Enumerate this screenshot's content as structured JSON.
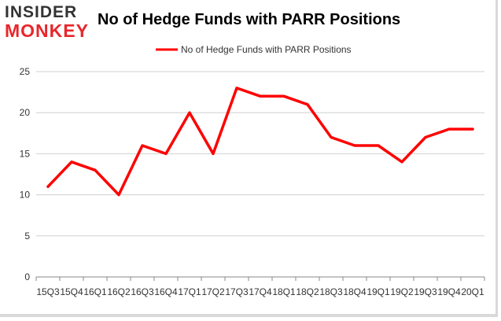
{
  "header": {
    "logo_top": "INSIDER",
    "logo_bottom": "MONKEY",
    "title": "No of Hedge Funds with PARR Positions"
  },
  "colors": {
    "series": "#ff0000",
    "grid": "#d0d0d0",
    "axis": "#888888",
    "logo_red": "#e8262b"
  },
  "chart_data": {
    "type": "line",
    "title": "No of Hedge Funds with PARR Positions",
    "categories": [
      "15Q3",
      "15Q4",
      "16Q1",
      "16Q2",
      "16Q3",
      "16Q4",
      "17Q1",
      "17Q2",
      "17Q3",
      "17Q4",
      "18Q1",
      "18Q2",
      "18Q3",
      "18Q4",
      "19Q1",
      "19Q2",
      "19Q3",
      "19Q4",
      "20Q1"
    ],
    "series": [
      {
        "name": "No of Hedge Funds with PARR Positions",
        "values": [
          11,
          14,
          13,
          10,
          16,
          15,
          20,
          15,
          23,
          22,
          22,
          21,
          17,
          16,
          16,
          14,
          17,
          18,
          18
        ]
      }
    ],
    "yticks": [
      0,
      5,
      10,
      15,
      20,
      25
    ],
    "ylim": [
      0,
      25
    ],
    "grid": true,
    "legend": "top-center"
  }
}
